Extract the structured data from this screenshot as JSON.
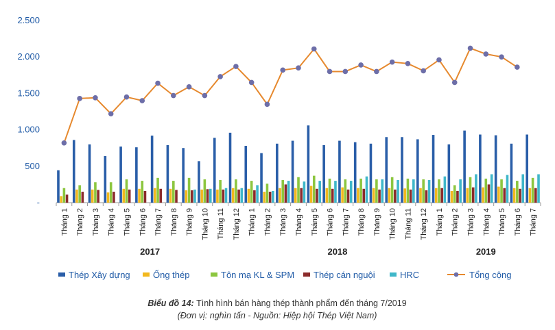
{
  "chart_data": {
    "type": "bar",
    "title_prefix": "Biểu đồ 14:",
    "title": "Tình hình bán hàng thép thành phẩm đến tháng 7/2019",
    "subtitle": "(Đơn vị: nghìn tấn - Nguồn: Hiệp hội Thép Việt Nam)",
    "ylim": [
      0,
      2500
    ],
    "yticks": [
      "-",
      "500",
      "1.000",
      "1.500",
      "2.000",
      "2.500"
    ],
    "ytick_values": [
      0,
      500,
      1000,
      1500,
      2000,
      2500
    ],
    "categories": [
      "Tháng 1",
      "Tháng 2",
      "Tháng 3",
      "Tháng 4",
      "Tháng 5",
      "Tháng 6",
      "Tháng 7",
      "Tháng 8",
      "Tháng 9",
      "Tháng 10",
      "Tháng 11",
      "Tháng 12",
      "Tháng 1",
      "Tháng 2",
      "Tháng 3",
      "Tháng 4",
      "Tháng 5",
      "Tháng 6",
      "Tháng 7",
      "Tháng 8",
      "Tháng 9",
      "Tháng 10",
      "Tháng 11",
      "Tháng 12",
      "Tháng 1",
      "Tháng 2",
      "Tháng 3",
      "Tháng 4",
      "Tháng 5",
      "Tháng 6",
      "Tháng 7"
    ],
    "year_groups": [
      {
        "label": "2017",
        "start": 0,
        "end": 11
      },
      {
        "label": "2018",
        "start": 12,
        "end": 23
      },
      {
        "label": "2019",
        "start": 24,
        "end": 30
      }
    ],
    "series": [
      {
        "name": "Thép Xây dựng",
        "color": "#2a5ea8",
        "values": [
          445,
          860,
          800,
          640,
          770,
          760,
          920,
          790,
          750,
          570,
          890,
          960,
          780,
          680,
          810,
          850,
          1060,
          790,
          850,
          830,
          810,
          900,
          900,
          870,
          930,
          800,
          990,
          935,
          925,
          810,
          935
        ]
      },
      {
        "name": "Ống thép",
        "color": "#f2b81e",
        "values": [
          90,
          180,
          180,
          140,
          190,
          190,
          200,
          190,
          170,
          180,
          180,
          200,
          190,
          150,
          200,
          200,
          230,
          200,
          210,
          200,
          200,
          200,
          195,
          200,
          200,
          160,
          200,
          210,
          220,
          200,
          200
        ]
      },
      {
        "name": "Tôn mạ KL & SPM",
        "color": "#8cc63f",
        "values": [
          200,
          240,
          280,
          280,
          320,
          300,
          340,
          300,
          340,
          320,
          310,
          320,
          300,
          260,
          310,
          350,
          370,
          330,
          320,
          330,
          320,
          350,
          330,
          320,
          320,
          240,
          350,
          330,
          320,
          300,
          340
        ]
      },
      {
        "name": "Thép cán nguội",
        "color": "#8b2b2b",
        "values": [
          110,
          150,
          175,
          150,
          180,
          160,
          190,
          175,
          170,
          185,
          180,
          180,
          170,
          150,
          250,
          200,
          190,
          190,
          180,
          190,
          180,
          180,
          180,
          170,
          200,
          160,
          210,
          250,
          200,
          190,
          200
        ]
      },
      {
        "name": "HRC",
        "color": "#3fb7c9",
        "values": [
          null,
          null,
          null,
          null,
          null,
          null,
          null,
          null,
          180,
          190,
          200,
          200,
          240,
          160,
          300,
          290,
          300,
          300,
          300,
          360,
          320,
          310,
          320,
          310,
          360,
          320,
          390,
          390,
          380,
          390,
          390
        ]
      }
    ],
    "line": {
      "name": "Tổng cộng",
      "color": "#e6892e",
      "marker_color": "#6d6ea8",
      "values": [
        820,
        1430,
        1440,
        1220,
        1450,
        1400,
        1640,
        1470,
        1590,
        1470,
        1730,
        1870,
        1650,
        1350,
        1820,
        1850,
        2110,
        1800,
        1800,
        1890,
        1800,
        1930,
        1910,
        1810,
        1960,
        1650,
        2120,
        2040,
        2000,
        1860,
        null
      ]
    }
  }
}
